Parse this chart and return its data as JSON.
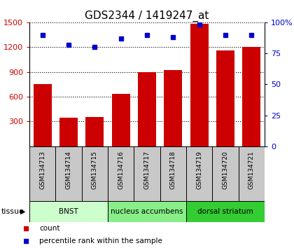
{
  "title": "GDS2344 / 1419247_at",
  "samples": [
    "GSM134713",
    "GSM134714",
    "GSM134715",
    "GSM134716",
    "GSM134717",
    "GSM134718",
    "GSM134719",
    "GSM134720",
    "GSM134721"
  ],
  "counts": [
    750,
    345,
    355,
    635,
    900,
    920,
    1480,
    1160,
    1200
  ],
  "percentiles": [
    90,
    82,
    80,
    87,
    90,
    88,
    98,
    90,
    90
  ],
  "ylim_left": [
    0,
    1500
  ],
  "ylim_right": [
    0,
    100
  ],
  "yticks_left": [
    300,
    600,
    900,
    1200,
    1500
  ],
  "yticks_right": [
    0,
    25,
    50,
    75,
    100
  ],
  "bar_color": "#cc0000",
  "dot_color": "#0000cc",
  "label_box_color": "#c8c8c8",
  "tissue_groups": [
    {
      "label": "BNST",
      "start": 0,
      "end": 3,
      "color": "#ccffcc"
    },
    {
      "label": "nucleus accumbens",
      "start": 3,
      "end": 6,
      "color": "#88ee88"
    },
    {
      "label": "dorsal striatum",
      "start": 6,
      "end": 9,
      "color": "#33cc33"
    }
  ],
  "tissue_label": "tissue",
  "legend_count": "count",
  "legend_percentile": "percentile rank within the sample",
  "bar_width": 0.7,
  "title_fontsize": 11,
  "tick_fontsize": 8,
  "sample_fontsize": 6.5
}
